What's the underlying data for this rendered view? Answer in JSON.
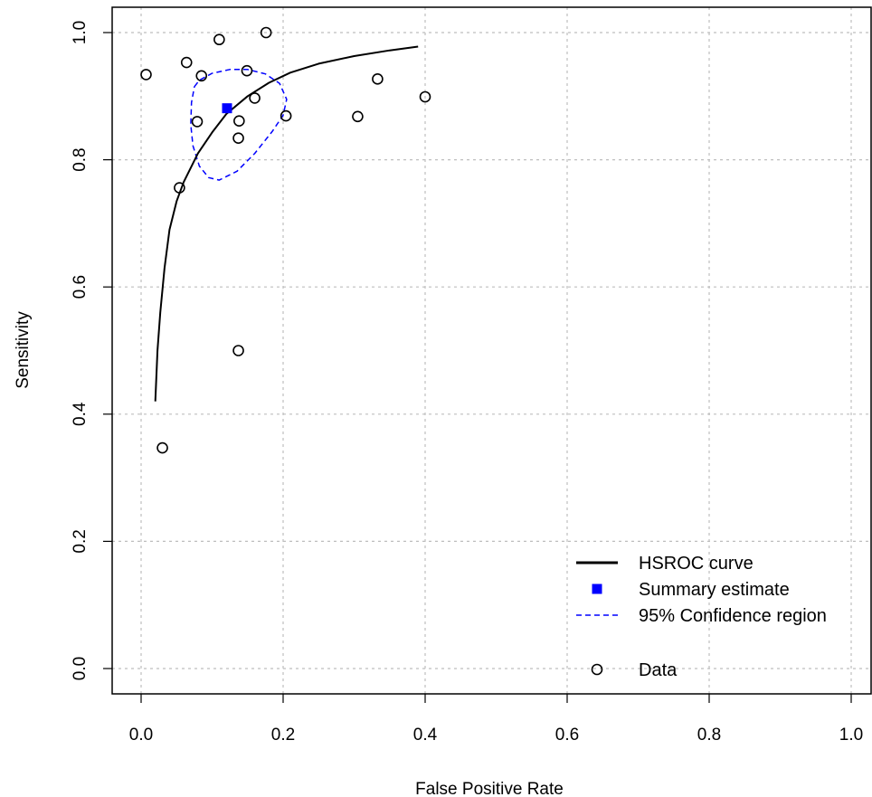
{
  "chart_data": {
    "type": "scatter",
    "xlabel": "False Positive Rate",
    "ylabel": "Sensitivity",
    "xlim": [
      0,
      1
    ],
    "ylim": [
      0,
      1
    ],
    "x_ticks": [
      "0.0",
      "0.2",
      "0.4",
      "0.6",
      "0.8",
      "1.0"
    ],
    "y_ticks": [
      "0.0",
      "0.2",
      "0.4",
      "0.6",
      "0.8",
      "1.0"
    ],
    "grid": true,
    "legend_position": "bottom-right",
    "legend": [
      {
        "label": "HSROC curve",
        "kind": "line"
      },
      {
        "label": "Summary estimate",
        "kind": "square"
      },
      {
        "label": "95% Confidence region",
        "kind": "dashed"
      },
      {
        "label": "Data",
        "kind": "circle"
      }
    ],
    "colors": {
      "curve": "#000000",
      "summary": "#0000ff",
      "confidence": "#0000ff",
      "grid": "#bebebe",
      "data": "#000000"
    },
    "hsroc_curve": {
      "x": [
        0.02,
        0.023,
        0.027,
        0.033,
        0.04,
        0.05,
        0.06,
        0.08,
        0.1,
        0.12,
        0.15,
        0.18,
        0.21,
        0.25,
        0.3,
        0.35,
        0.39
      ],
      "y": [
        0.42,
        0.5,
        0.56,
        0.63,
        0.69,
        0.735,
        0.765,
        0.81,
        0.843,
        0.872,
        0.9,
        0.921,
        0.937,
        0.951,
        0.963,
        0.972,
        0.978
      ]
    },
    "summary_estimate": {
      "x": 0.121,
      "y": 0.881
    },
    "confidence_region": {
      "x": [
        0.075,
        0.082,
        0.1,
        0.125,
        0.15,
        0.175,
        0.195,
        0.205,
        0.2,
        0.185,
        0.16,
        0.135,
        0.11,
        0.095,
        0.082,
        0.073,
        0.07,
        0.071,
        0.075
      ],
      "y": [
        0.915,
        0.925,
        0.936,
        0.942,
        0.942,
        0.935,
        0.92,
        0.895,
        0.87,
        0.845,
        0.81,
        0.782,
        0.768,
        0.772,
        0.79,
        0.822,
        0.855,
        0.89,
        0.915
      ]
    },
    "data_points": {
      "x": [
        0.007,
        0.064,
        0.085,
        0.11,
        0.176,
        0.149,
        0.16,
        0.204,
        0.138,
        0.079,
        0.137,
        0.054,
        0.137,
        0.03,
        0.305,
        0.333,
        0.4
      ],
      "y": [
        0.934,
        0.953,
        0.932,
        0.989,
        1.0,
        0.94,
        0.897,
        0.869,
        0.861,
        0.86,
        0.834,
        0.756,
        0.5,
        0.347,
        0.868,
        0.927,
        0.899
      ]
    }
  }
}
